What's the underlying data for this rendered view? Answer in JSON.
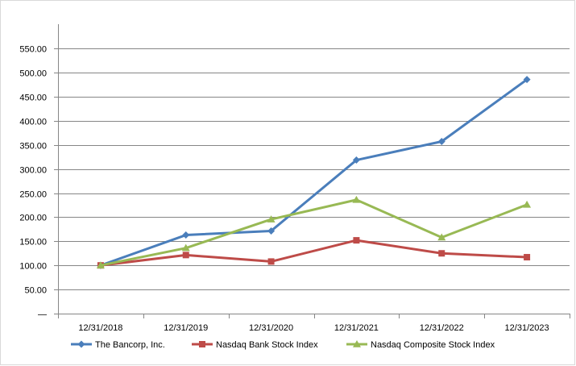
{
  "chart_data": {
    "type": "line",
    "categories": [
      "12/31/2018",
      "12/31/2019",
      "12/31/2020",
      "12/31/2021",
      "12/31/2022",
      "12/31/2023"
    ],
    "series": [
      {
        "name": "The Bancorp, Inc.",
        "color": "#4A7EBB",
        "marker": "diamond",
        "values": [
          100.0,
          163.0,
          171.5,
          318.5,
          357.0,
          485.5
        ]
      },
      {
        "name": "Nasdaq Bank Stock Index",
        "color": "#BE4B48",
        "marker": "square",
        "values": [
          100.0,
          121.5,
          108.0,
          152.0,
          125.0,
          117.0
        ]
      },
      {
        "name": "Nasdaq Composite Stock Index",
        "color": "#98B954",
        "marker": "triangle",
        "values": [
          100.0,
          136.0,
          195.5,
          236.0,
          158.0,
          226.0
        ]
      }
    ],
    "y_ticks": [
      "—",
      "50.00",
      "100.00",
      "150.00",
      "200.00",
      "250.00",
      "300.00",
      "350.00",
      "400.00",
      "450.00",
      "500.00",
      "550.00"
    ],
    "ylim": [
      0,
      550
    ],
    "grid": true,
    "legend_position": "bottom"
  }
}
